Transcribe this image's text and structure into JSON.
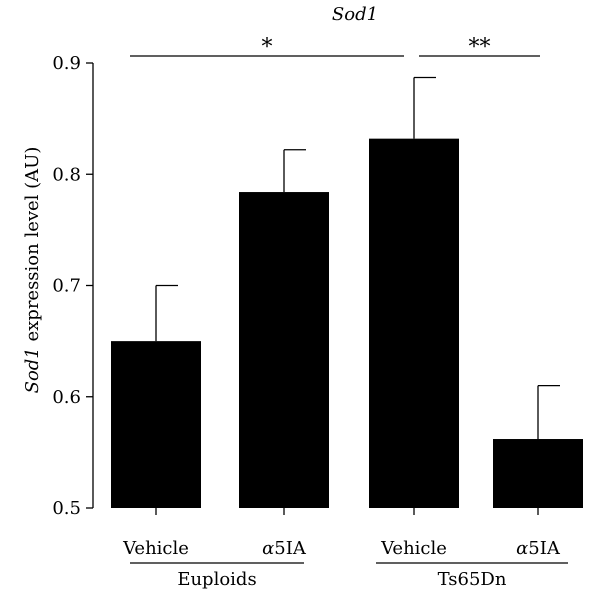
{
  "chart_data": {
    "type": "bar",
    "title": "Sod1",
    "ylabel_italic": "Sod1",
    "ylabel_rest": " expression level (AU)",
    "ylim": [
      0.5,
      0.9
    ],
    "yticks": [
      "0.5",
      "0.6",
      "0.7",
      "0.8",
      "0.9"
    ],
    "categories": [
      "Vehicle",
      "α5IA",
      "Vehicle",
      "α5IA"
    ],
    "values": [
      0.65,
      0.784,
      0.832,
      0.562
    ],
    "errors": [
      0.05,
      0.038,
      0.055,
      0.048
    ],
    "groups": [
      {
        "label": "Euploids",
        "categories": [
          0,
          1
        ]
      },
      {
        "label": "Ts65Dn",
        "categories": [
          2,
          3
        ]
      }
    ],
    "significance": [
      {
        "label": "*",
        "from": 0,
        "to": 2
      },
      {
        "label": "**",
        "to": 3,
        "from": 2
      }
    ],
    "bar_color": "#000000"
  }
}
